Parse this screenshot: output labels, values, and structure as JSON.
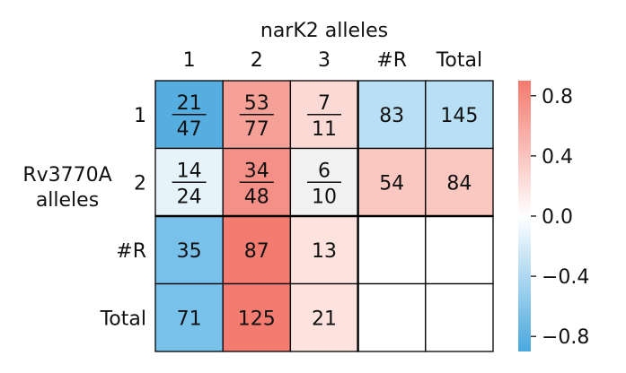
{
  "chart_data": {
    "type": "heatmap",
    "title": "narK2 alleles",
    "ylabel": "Rv3770A\nalleles",
    "col_labels": [
      "1",
      "2",
      "3",
      "#R",
      "Total"
    ],
    "row_labels": [
      "1",
      "2",
      "#R",
      "Total"
    ],
    "cells": [
      [
        {
          "num": "21",
          "den": "47"
        },
        {
          "num": "53",
          "den": "77"
        },
        {
          "num": "7",
          "den": "11"
        },
        {
          "text": "83"
        },
        {
          "text": "145"
        }
      ],
      [
        {
          "num": "14",
          "den": "24"
        },
        {
          "num": "34",
          "den": "48"
        },
        {
          "num": "6",
          "den": "10"
        },
        {
          "text": "54"
        },
        {
          "text": "84"
        }
      ],
      [
        {
          "text": "35"
        },
        {
          "text": "87"
        },
        {
          "text": "13"
        },
        {
          "text": ""
        },
        {
          "text": ""
        }
      ],
      [
        {
          "text": "71"
        },
        {
          "text": "125"
        },
        {
          "text": "21"
        },
        {
          "text": ""
        },
        {
          "text": ""
        }
      ]
    ],
    "cell_colors": [
      [
        "#55ade0",
        "#f6a198",
        "#fbdad5",
        "#b8dff3",
        "#b8dff3"
      ],
      [
        "#e6f3fa",
        "#f59088",
        "#f1f1f1",
        "#fac8c1",
        "#fac8c1"
      ],
      [
        "#78c1ea",
        "#f47b70",
        "#fde2dd",
        "#ffffff",
        "#ffffff"
      ],
      [
        "#78c1ea",
        "#f47b70",
        "#fde2dd",
        "#ffffff",
        "#ffffff"
      ]
    ],
    "colorbar": {
      "ticks": [
        "0.8",
        "0.4",
        "0.0",
        "−0.4",
        "−0.8"
      ],
      "tick_values": [
        0.8,
        0.4,
        0.0,
        -0.4,
        -0.8
      ],
      "range": [
        -0.9,
        0.9
      ],
      "low_color": "#4aa8de",
      "mid_color": "#ffffff",
      "high_color": "#f47a6e"
    }
  }
}
